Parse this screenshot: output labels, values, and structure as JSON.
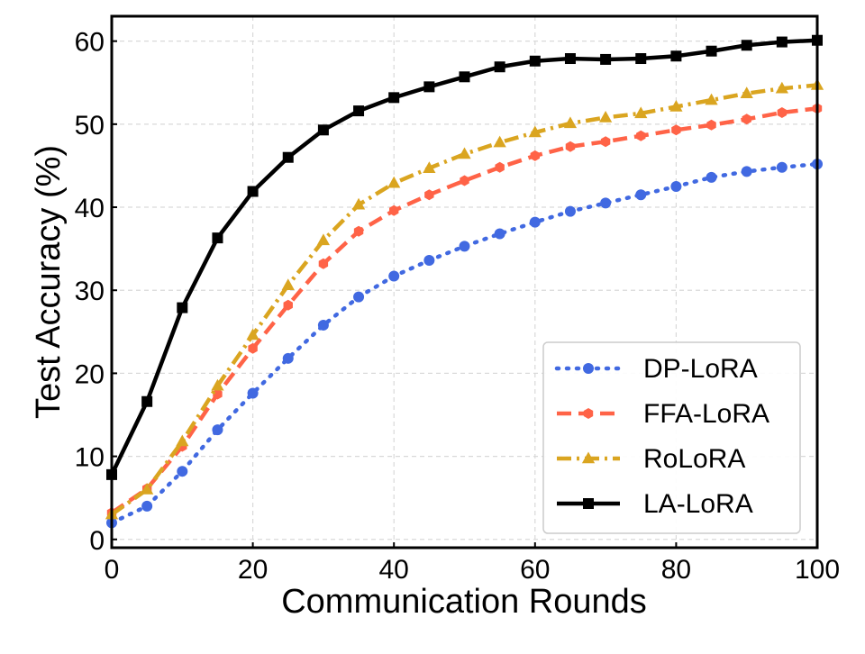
{
  "chart_data": {
    "type": "line",
    "title": "",
    "xlabel": "Communication Rounds",
    "ylabel": "Test Accuracy (%)",
    "xlim": [
      0,
      100
    ],
    "ylim": [
      -1,
      63
    ],
    "xticks": [
      0,
      20,
      40,
      60,
      80,
      100
    ],
    "yticks": [
      0,
      10,
      20,
      30,
      40,
      50,
      60
    ],
    "grid": true,
    "legend_position": "bottom-right",
    "x": [
      0,
      5,
      10,
      15,
      20,
      25,
      30,
      35,
      40,
      45,
      50,
      55,
      60,
      65,
      70,
      75,
      80,
      85,
      90,
      95,
      100
    ],
    "series": [
      {
        "name": "DP-LoRA",
        "color": "#4169e1",
        "line_style": "dotted",
        "marker": "circle",
        "values": [
          2.0,
          4.0,
          8.2,
          13.2,
          17.6,
          21.8,
          25.8,
          29.2,
          31.7,
          33.6,
          35.3,
          36.8,
          38.2,
          39.5,
          40.5,
          41.5,
          42.5,
          43.6,
          44.3,
          44.8,
          45.2
        ]
      },
      {
        "name": "FFA-LoRA",
        "color": "#ff6347",
        "line_style": "dashed",
        "marker": "hexagon",
        "values": [
          3.2,
          6.1,
          11.2,
          17.5,
          23.0,
          28.2,
          33.2,
          37.1,
          39.6,
          41.5,
          43.2,
          44.8,
          46.2,
          47.3,
          47.9,
          48.6,
          49.3,
          49.9,
          50.6,
          51.4,
          51.9
        ]
      },
      {
        "name": "RoLoRA",
        "color": "#daa520",
        "line_style": "dashdot",
        "marker": "triangle",
        "values": [
          3.0,
          6.0,
          11.8,
          18.5,
          24.6,
          30.6,
          36.0,
          40.3,
          42.9,
          44.7,
          46.4,
          47.8,
          49.0,
          50.1,
          50.8,
          51.3,
          52.1,
          52.9,
          53.7,
          54.3,
          54.7
        ]
      },
      {
        "name": "LA-LoRA",
        "color": "#000000",
        "line_style": "solid",
        "marker": "square",
        "values": [
          7.8,
          16.6,
          27.9,
          36.3,
          41.9,
          46.0,
          49.3,
          51.6,
          53.2,
          54.5,
          55.7,
          56.9,
          57.6,
          57.9,
          57.8,
          57.9,
          58.2,
          58.8,
          59.5,
          59.9,
          60.1
        ]
      }
    ]
  }
}
